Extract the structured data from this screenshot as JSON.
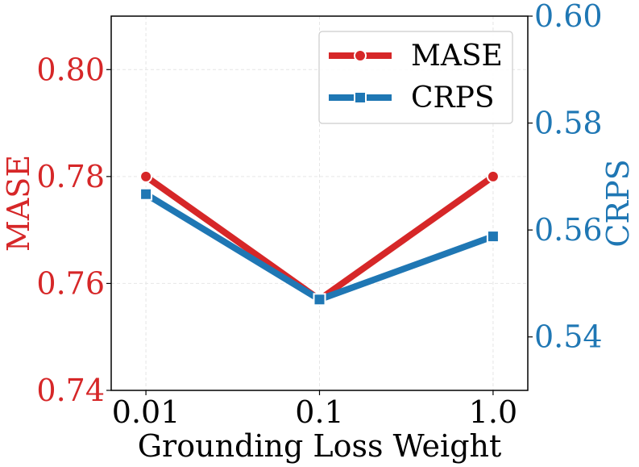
{
  "chart_data": {
    "type": "line",
    "xlabel": "Grounding Loss Weight",
    "categories": [
      "0.01",
      "0.1",
      "1.0"
    ],
    "grid": true,
    "legend_location": "top-right",
    "series": [
      {
        "name": "MASE",
        "axis": "left",
        "color": "#d62728",
        "marker": "circle",
        "values": [
          0.78,
          0.757,
          0.78
        ]
      },
      {
        "name": "CRPS",
        "axis": "right",
        "color": "#1f77b4",
        "marker": "square",
        "values": [
          0.5667,
          0.547,
          0.5588
        ]
      }
    ],
    "y_left": {
      "label": "MASE",
      "color": "#d62728",
      "ylim": [
        0.74,
        0.81
      ],
      "ticks": [
        0.74,
        0.76,
        0.78,
        0.8
      ],
      "tick_labels": [
        "0.74",
        "0.76",
        "0.78",
        "0.80"
      ]
    },
    "y_right": {
      "label": "CRPS",
      "color": "#1f77b4",
      "ylim": [
        0.53,
        0.6
      ],
      "ticks": [
        0.54,
        0.56,
        0.58,
        0.6
      ],
      "tick_labels": [
        "0.54",
        "0.56",
        "0.58",
        "0.60"
      ]
    }
  }
}
